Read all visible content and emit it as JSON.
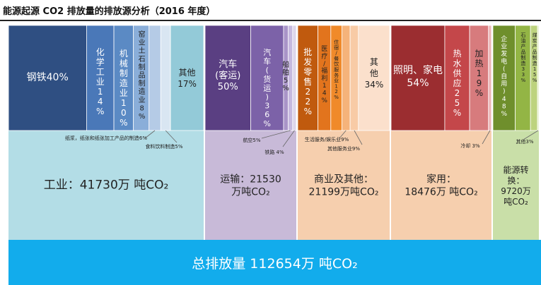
{
  "title": "能源起源 CO2 排放量的排放源分析（2016 年度）",
  "colors": {
    "total_band": "#12acec",
    "industry_band": "#b3dde6",
    "transport_band": "#c8bad8",
    "commerce_band": "#f6cfae",
    "home_band": "#f6cfae",
    "energy_band": "#c9dfa8"
  },
  "chart_data": {
    "type": "treemap",
    "unit": "万吨CO2",
    "total": {
      "label": "总排放量 112654万 吨CO₂",
      "value": 112654
    },
    "sectors": [
      {
        "key": "industry",
        "label_lines": [
          "工业：41730万 吨CO₂"
        ],
        "value": 41730,
        "subcategories": [
          {
            "label": "钢铁40%",
            "share": 40,
            "color": "#2f4f82"
          },
          {
            "label": "化学工业14%",
            "share": 14,
            "color": "#4a78b8"
          },
          {
            "label": "机械制造业10%",
            "share": 10,
            "color": "#5b8ac4"
          },
          {
            "label": "窑业土石制品制造业8%",
            "share": 8,
            "color": "#8aaed9"
          },
          {
            "label": "纸浆，纸张和纸张加工产品的制造6%",
            "share": 6,
            "color": "#b5cbe6"
          },
          {
            "label": "食料饮料制造5%",
            "share": 5,
            "color": "#d9e6f2"
          },
          {
            "label": "其他17%",
            "share": 17,
            "color": "#93cad8"
          }
        ]
      },
      {
        "key": "transport",
        "label_lines": [
          "运输：21530",
          "万吨CO₂"
        ],
        "value": 21530,
        "subcategories": [
          {
            "label": "汽车(客运)50%",
            "share": 50,
            "color": "#5a3f82"
          },
          {
            "label": "汽车(货运)36%",
            "share": 36,
            "color": "#7c62a8"
          },
          {
            "label": "船舶5%",
            "share": 5,
            "color": "#a994c8"
          },
          {
            "label": "航空5%",
            "share": 5,
            "color": "#c6b9de"
          },
          {
            "label": "铁路 4%",
            "share": 4,
            "color": "#ddd5ea"
          }
        ]
      },
      {
        "key": "commerce",
        "label_lines": [
          "商业及其他：",
          "21199万吨CO₂"
        ],
        "value": 21199,
        "subcategories": [
          {
            "label": "批发零售22%",
            "share": 22,
            "color": "#c05a0e"
          },
          {
            "label": "医疗/福利14%",
            "share": 14,
            "color": "#e2741d"
          },
          {
            "label": "住宿/餐饮服务业12%",
            "share": 12,
            "color": "#f08a2a"
          },
          {
            "label": "生活服务/娱乐业9%",
            "share": 9,
            "color": "#f5b37a"
          },
          {
            "label": "其他服务业9%",
            "share": 9,
            "color": "#f8cba6"
          },
          {
            "label": "其他34%",
            "share": 34,
            "color": "#fbe0cc"
          }
        ]
      },
      {
        "key": "home",
        "label_lines": [
          "家用：",
          "18476万 吨CO₂"
        ],
        "value": 18476,
        "subcategories": [
          {
            "label": "照明、家电54%",
            "share": 54,
            "color": "#9b2d30"
          },
          {
            "label": "热水供应25%",
            "share": 25,
            "color": "#c4474a"
          },
          {
            "label": "加热19%",
            "share": 19,
            "color": "#d77b7d"
          },
          {
            "label": "冷却 3%",
            "share": 3,
            "color": "#ecb8b9"
          }
        ]
      },
      {
        "key": "energy",
        "label_lines": [
          "能源转",
          "换：",
          "9720万",
          "吨CO₂"
        ],
        "value": 9720,
        "subcategories": [
          {
            "label": "企业发电(自用)48%",
            "share": 48,
            "color": "#6f8f2c"
          },
          {
            "label": "石油产品制造33%",
            "share": 33,
            "color": "#93b545"
          },
          {
            "label": "煤炭产品制造15%",
            "share": 15,
            "color": "#bdd37e"
          },
          {
            "label": "其他3%",
            "share": 3,
            "color": "#dfeac0"
          }
        ]
      }
    ]
  }
}
